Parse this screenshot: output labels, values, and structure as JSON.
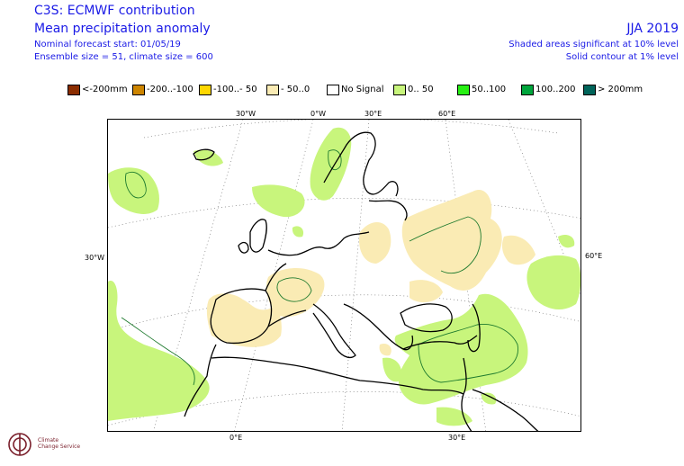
{
  "header": {
    "title": "C3S: ECMWF contribution",
    "subtitle": "Mean precipitation anomaly",
    "forecast_start": "Nominal forecast start: 01/05/19",
    "ensemble": "Ensemble size = 51, climate size = 600",
    "season": "JJA 2019",
    "note_significance": "Shaded areas significant at 10% level",
    "note_contour": "Solid contour at 1% level"
  },
  "legend": {
    "items": [
      {
        "label": "<-200mm",
        "color": "#8b2d00"
      },
      {
        "label": "-200..-100",
        "color": "#cd8500"
      },
      {
        "label": "-100..- 50",
        "color": "#ffd700"
      },
      {
        "label": "- 50..0",
        "color": "#faebb4"
      },
      {
        "label": "No Signal",
        "color": "#ffffff"
      },
      {
        "label": "0.. 50",
        "color": "#c8f57c"
      },
      {
        "label": "50..100",
        "color": "#28f014"
      },
      {
        "label": "100..200",
        "color": "#00a53c"
      },
      {
        "label": "> 200mm",
        "color": "#00645a"
      }
    ]
  },
  "graticule": {
    "top": [
      "30°W",
      "0°W",
      "30°E",
      "60°E"
    ],
    "left": [
      "30°W"
    ],
    "right": [
      "60°E"
    ],
    "bottom": [
      "0°E",
      "30°E"
    ]
  },
  "logo": {
    "line1": "Climate",
    "line2": "Change Service"
  },
  "colors": {
    "text_blue": "#1a1ae6",
    "dry_light": "#faebb4",
    "wet_light": "#c8f57c",
    "contour": "#1e7a2e",
    "coast": "#000000"
  }
}
